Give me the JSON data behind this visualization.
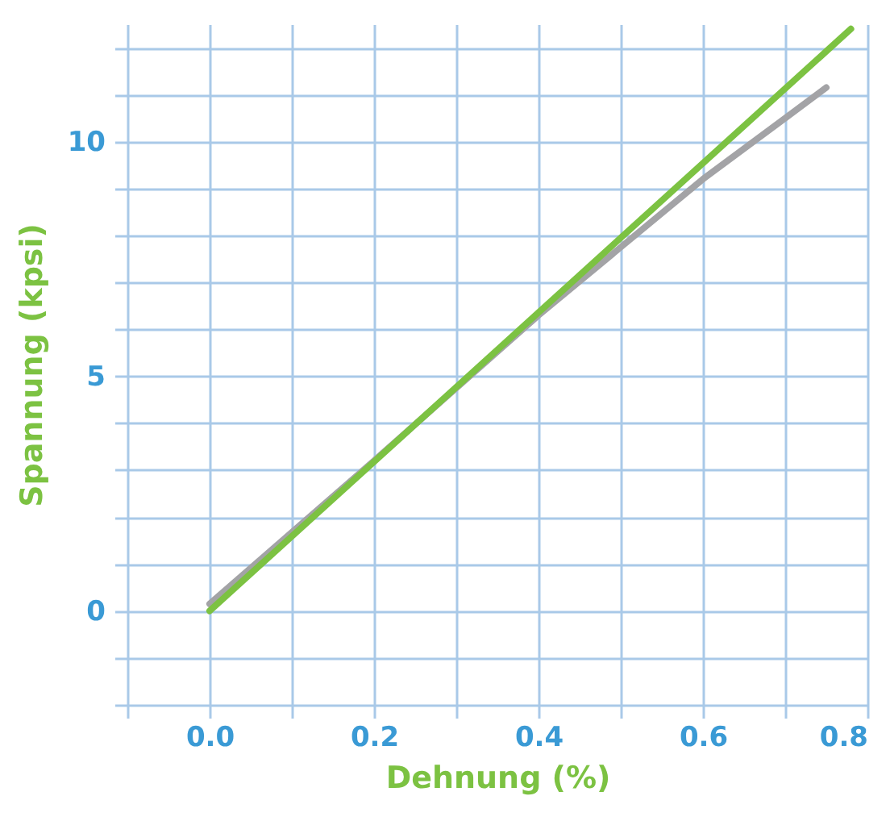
{
  "chart_data": {
    "type": "line",
    "xlabel": "Dehnung (%)",
    "ylabel": "Spannung (kpsi)",
    "xlim": [
      -0.1,
      0.8
    ],
    "ylim": [
      -2,
      12.5
    ],
    "xticks": [
      {
        "value": -0.1,
        "label": null
      },
      {
        "value": 0,
        "label": "0.0"
      },
      {
        "value": 0.1,
        "label": null
      },
      {
        "value": 0.2,
        "label": "0.2"
      },
      {
        "value": 0.3,
        "label": null
      },
      {
        "value": 0.4,
        "label": "0.4"
      },
      {
        "value": 0.5,
        "label": null
      },
      {
        "value": 0.6,
        "label": "0.6"
      },
      {
        "value": 0.7,
        "label": null
      },
      {
        "value": 0.8,
        "label": "0.8"
      }
    ],
    "yticks": [
      {
        "value": -2,
        "label": null
      },
      {
        "value": -1,
        "label": null
      },
      0,
      {
        "value": 1,
        "label": null
      },
      {
        "value": 2,
        "label": null
      },
      {
        "value": 3,
        "label": null
      },
      {
        "value": 4,
        "label": null
      },
      5,
      {
        "value": 6,
        "label": null
      },
      {
        "value": 7,
        "label": null
      },
      {
        "value": 8,
        "label": null
      },
      {
        "value": 9,
        "label": null
      },
      10,
      {
        "value": 11,
        "label": null
      },
      {
        "value": 12,
        "label": null
      }
    ],
    "grid": true,
    "series": [
      {
        "color": "#a3a3a6",
        "x": [
          0,
          0.2,
          0.4,
          0.5,
          0.6,
          0.7,
          0.75
        ],
        "values": [
          0.15,
          3.2,
          6.3,
          7.75,
          9.2,
          10.5,
          11.15
        ]
      },
      {
        "color": "#7cc242",
        "x": [
          0,
          0.78
        ],
        "values": [
          0,
          12.4
        ]
      }
    ]
  }
}
